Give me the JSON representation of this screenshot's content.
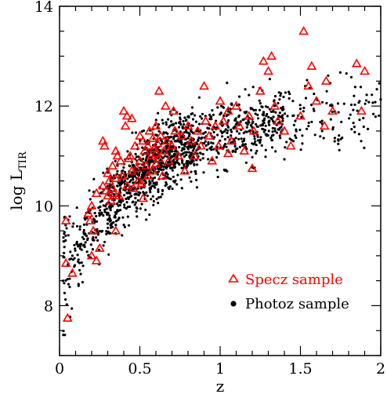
{
  "chart_data": {
    "type": "scatter",
    "title": "",
    "xlabel": "z",
    "ylabel_main": "log L",
    "ylabel_sub": "TIR",
    "xlim": [
      0,
      2
    ],
    "ylim": [
      7,
      14
    ],
    "x_ticks": [
      0,
      0.5,
      1,
      1.5,
      2
    ],
    "x_tick_labels": [
      "0",
      "0.5",
      "1",
      "1.5",
      "2"
    ],
    "y_ticks": [
      8,
      10,
      12,
      14
    ],
    "y_tick_labels": [
      "8",
      "10",
      "12",
      "14"
    ],
    "x_minor_step": 0.1,
    "y_minor_step": 0.5,
    "grid": false,
    "legend_position": "bottom-right",
    "series": [
      {
        "name": "Specz sample",
        "marker": "open-triangle",
        "color": "#ff0000",
        "points": [
          [
            0.04,
            9.7
          ],
          [
            0.04,
            8.85
          ],
          [
            0.05,
            7.75
          ],
          [
            0.08,
            8.65
          ],
          [
            0.18,
            9.85
          ],
          [
            0.19,
            9.7
          ],
          [
            0.2,
            9.0
          ],
          [
            0.2,
            10.0
          ],
          [
            0.21,
            9.5
          ],
          [
            0.23,
            8.9
          ],
          [
            0.23,
            10.25
          ],
          [
            0.27,
            10.4
          ],
          [
            0.27,
            11.3
          ],
          [
            0.28,
            11.2
          ],
          [
            0.29,
            10.3
          ],
          [
            0.3,
            10.2
          ],
          [
            0.3,
            10.65
          ],
          [
            0.31,
            10.5
          ],
          [
            0.32,
            10.1
          ],
          [
            0.33,
            10.8
          ],
          [
            0.33,
            10.35
          ],
          [
            0.34,
            10.25
          ],
          [
            0.35,
            10.55
          ],
          [
            0.35,
            9.5
          ],
          [
            0.36,
            11.0
          ],
          [
            0.37,
            10.2
          ],
          [
            0.38,
            10.9
          ],
          [
            0.39,
            10.6
          ],
          [
            0.4,
            11.9
          ],
          [
            0.41,
            11.6
          ],
          [
            0.42,
            10.4
          ],
          [
            0.42,
            11.8
          ],
          [
            0.43,
            10.95
          ],
          [
            0.44,
            11.0
          ],
          [
            0.45,
            10.7
          ],
          [
            0.46,
            10.35
          ],
          [
            0.47,
            11.2
          ],
          [
            0.48,
            10.75
          ],
          [
            0.49,
            10.5
          ],
          [
            0.5,
            11.4
          ],
          [
            0.5,
            10.9
          ],
          [
            0.51,
            10.45
          ],
          [
            0.52,
            11.3
          ],
          [
            0.52,
            10.15
          ],
          [
            0.53,
            11.1
          ],
          [
            0.54,
            10.8
          ],
          [
            0.55,
            11.2
          ],
          [
            0.55,
            10.6
          ],
          [
            0.56,
            11.5
          ],
          [
            0.57,
            11.0
          ],
          [
            0.58,
            10.7
          ],
          [
            0.58,
            11.35
          ],
          [
            0.59,
            11.15
          ],
          [
            0.6,
            10.85
          ],
          [
            0.6,
            11.6
          ],
          [
            0.61,
            11.25
          ],
          [
            0.62,
            10.95
          ],
          [
            0.62,
            12.3
          ],
          [
            0.63,
            11.4
          ],
          [
            0.64,
            10.6
          ],
          [
            0.65,
            11.1
          ],
          [
            0.66,
            12.0
          ],
          [
            0.67,
            11.3
          ],
          [
            0.68,
            10.9
          ],
          [
            0.7,
            11.2
          ],
          [
            0.71,
            11.9
          ],
          [
            0.72,
            11.5
          ],
          [
            0.74,
            11.0
          ],
          [
            0.76,
            11.4
          ],
          [
            0.78,
            10.7
          ],
          [
            0.8,
            11.6
          ],
          [
            0.82,
            11.3
          ],
          [
            0.84,
            11.0
          ],
          [
            0.86,
            11.5
          ],
          [
            0.88,
            11.2
          ],
          [
            0.9,
            12.4
          ],
          [
            0.91,
            11.7
          ],
          [
            0.93,
            11.4
          ],
          [
            0.95,
            10.9
          ],
          [
            0.97,
            11.6
          ],
          [
            0.99,
            11.2
          ],
          [
            1.0,
            12.1
          ],
          [
            1.02,
            11.7
          ],
          [
            1.05,
            11.9
          ],
          [
            1.07,
            11.3
          ],
          [
            1.1,
            12.0
          ],
          [
            1.12,
            11.6
          ],
          [
            1.15,
            11.1
          ],
          [
            1.18,
            11.8
          ],
          [
            1.2,
            10.75
          ],
          [
            1.21,
            11.5
          ],
          [
            1.25,
            12.3
          ],
          [
            1.27,
            12.9
          ],
          [
            1.3,
            12.7
          ],
          [
            1.32,
            13.0
          ],
          [
            1.34,
            12.0
          ],
          [
            1.36,
            11.7
          ],
          [
            1.4,
            11.5
          ],
          [
            1.44,
            11.2
          ],
          [
            1.5,
            11.8
          ],
          [
            1.52,
            13.5
          ],
          [
            1.55,
            12.4
          ],
          [
            1.57,
            12.8
          ],
          [
            1.6,
            12.1
          ],
          [
            1.65,
            11.6
          ],
          [
            1.66,
            12.5
          ],
          [
            1.7,
            11.9
          ],
          [
            1.85,
            12.85
          ],
          [
            1.88,
            11.9
          ],
          [
            1.9,
            12.7
          ],
          [
            0.45,
            11.75
          ],
          [
            0.35,
            11.1
          ],
          [
            0.6,
            11.05
          ],
          [
            1.05,
            11.05
          ],
          [
            0.25,
            9.15
          ]
        ]
      },
      {
        "name": "Photoz sample",
        "marker": "filled-circle",
        "color": "#000000",
        "count": 1500,
        "trend": "log L_TIR rises steeply from about 9 near z=0 to about 12 near z=1.5, with a scatter of roughly 0.5 dex"
      }
    ]
  },
  "legend": {
    "specz_label": "Specz sample",
    "photoz_label": "Photoz sample"
  }
}
